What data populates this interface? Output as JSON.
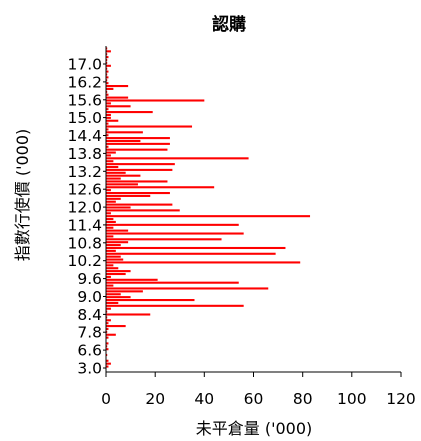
{
  "chart_data": {
    "type": "bar",
    "orientation": "horizontal",
    "title": "認購",
    "xlabel": "未平倉量 ('000)",
    "ylabel": "指數行使價 ('000)",
    "xlim": [
      0,
      120
    ],
    "x_ticks": [
      0,
      20,
      40,
      60,
      80,
      100,
      120
    ],
    "y_tick_labels": [
      "3.0",
      "6.6",
      "7.8",
      "8.4",
      "9.0",
      "9.6",
      "10.2",
      "10.8",
      "11.4",
      "12.0",
      "12.6",
      "13.2",
      "13.8",
      "14.4",
      "15.0",
      "15.6",
      "16.2",
      "17.0"
    ],
    "bar_color": "#ff0000",
    "strike": [
      3.0,
      6.6,
      6.8,
      7.0,
      7.2,
      7.4,
      7.6,
      7.8,
      8.0,
      8.2,
      8.4,
      8.6,
      8.8,
      9.0,
      9.2,
      9.4,
      9.6,
      9.7,
      9.8,
      9.9,
      10.0,
      10.05,
      10.1,
      10.15,
      10.2,
      10.25,
      10.3,
      10.35,
      10.4,
      10.45,
      10.5,
      10.55,
      10.6,
      10.65,
      10.7,
      10.75,
      10.8,
      10.85,
      10.9,
      10.95,
      11.0,
      11.05,
      11.1,
      11.15,
      11.2,
      11.25,
      11.3,
      11.35,
      11.4,
      11.45,
      11.5,
      11.55,
      11.6,
      11.65,
      11.7,
      11.75,
      11.8,
      11.85,
      11.9,
      11.95,
      12.0,
      12.05,
      12.1,
      12.15,
      12.2,
      12.25,
      12.3,
      12.35,
      12.4,
      12.45,
      12.5,
      12.55,
      12.6,
      12.65,
      12.7,
      12.75,
      12.8,
      12.85,
      12.9,
      12.95,
      13.0,
      13.05,
      13.1,
      13.15,
      13.2,
      13.25,
      13.3,
      13.35,
      13.4,
      13.45,
      13.5,
      13.6,
      13.7,
      13.8,
      13.9,
      14.0,
      14.2,
      14.4,
      14.6,
      14.8,
      15.0,
      15.2,
      15.4,
      15.6,
      15.8,
      16.0,
      16.2,
      16.4,
      16.6,
      16.8,
      17.0
    ],
    "open_interest": [
      1,
      2,
      1,
      0,
      0.5,
      0,
      1,
      0.5,
      1,
      0,
      1,
      4,
      0.5,
      1,
      8,
      1,
      2,
      0.5,
      18,
      0.5,
      2,
      56,
      5,
      36,
      10,
      6,
      15,
      66,
      3,
      54,
      21,
      2,
      8,
      10,
      5,
      3,
      79,
      7,
      6,
      69,
      4,
      73,
      6,
      9,
      47,
      3,
      56,
      9,
      3,
      54,
      4,
      3,
      83,
      2,
      30,
      10,
      27,
      4,
      6,
      18,
      26,
      2,
      44,
      13,
      25,
      6,
      14,
      8,
      27,
      5,
      28,
      3,
      58,
      2,
      4,
      25,
      1,
      26,
      14,
      26,
      1,
      15,
      1,
      35,
      1,
      5,
      2,
      2,
      19,
      1,
      10,
      2,
      40,
      9,
      1,
      0.5,
      3,
      9,
      1,
      0.5,
      1,
      0.5,
      1,
      0.5,
      2,
      0.5,
      0.5,
      1,
      0.5,
      2,
      0.5
    ]
  }
}
